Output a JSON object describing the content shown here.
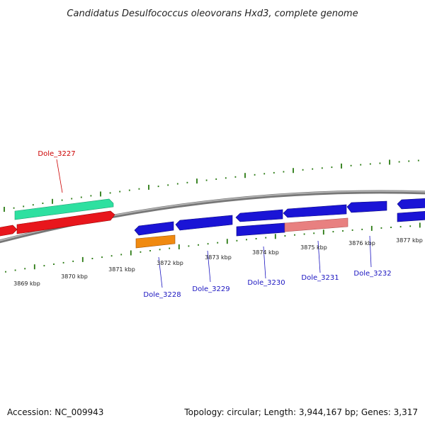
{
  "title": "Candidatus Desulfococcus oleovorans Hxd3, complete genome",
  "footer": {
    "accession": "Accession: NC_009943",
    "summary": "Topology: circular; Length: 3,944,167 bp; Genes: 3,317"
  },
  "colors": {
    "backbone": "#888888",
    "tick_green": "#2a7a12",
    "gene_red": "#e8161c",
    "gene_mint": "#2ee0a0",
    "gene_blue": "#1a14d6",
    "gene_orange": "#f08a10",
    "gene_pink": "#e88080",
    "label_red": "#cc0000",
    "label_blue": "#1a14c0"
  },
  "kbp_labels": [
    "3869 kbp",
    "3870 kbp",
    "3871 kbp",
    "3872 kbp",
    "3873 kbp",
    "3874 kbp",
    "3875 kbp",
    "3876 kbp",
    "3877 kbp"
  ],
  "gene_labels": [
    {
      "name": "Dole_3227",
      "color": "red"
    },
    {
      "name": "Dole_3228",
      "color": "blue"
    },
    {
      "name": "Dole_3229",
      "color": "blue"
    },
    {
      "name": "Dole_3230",
      "color": "blue"
    },
    {
      "name": "Dole_3231",
      "color": "blue"
    },
    {
      "name": "Dole_3232",
      "color": "blue"
    }
  ]
}
